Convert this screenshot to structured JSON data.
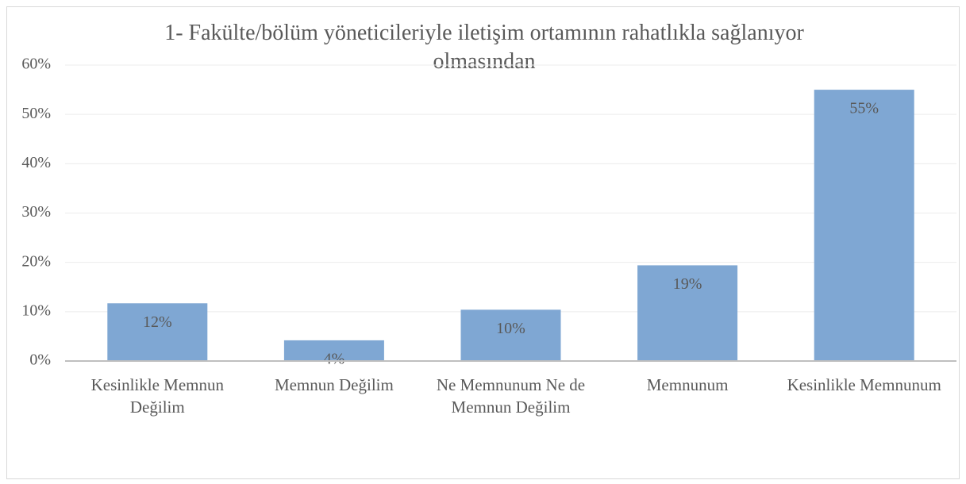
{
  "chart_data": {
    "type": "bar",
    "title": "1- Fakülte/bölüm yöneticileriyle iletişim ortamının rahatlıkla sağlanıyor olmasından",
    "categories": [
      "Kesinlikle Memnun Değilim",
      "Memnun Değilim",
      "Ne Memnunum Ne de Memnun Değilim",
      "Memnunum",
      "Kesinlikle Memnunum"
    ],
    "values": [
      11.7,
      4.2,
      10.4,
      19.4,
      55.0
    ],
    "value_labels": [
      "12%",
      "4%",
      "10%",
      "19%",
      "55%"
    ],
    "color": "#7fa7d3",
    "ylim": [
      0,
      60
    ],
    "yticks": [
      {
        "value": 0,
        "label": "0%"
      },
      {
        "value": 10,
        "label": "10%"
      },
      {
        "value": 20,
        "label": "20%"
      },
      {
        "value": 30,
        "label": "30%"
      },
      {
        "value": 40,
        "label": "40%"
      },
      {
        "value": 50,
        "label": "50%"
      },
      {
        "value": 60,
        "label": "60%"
      }
    ],
    "grid": true
  }
}
